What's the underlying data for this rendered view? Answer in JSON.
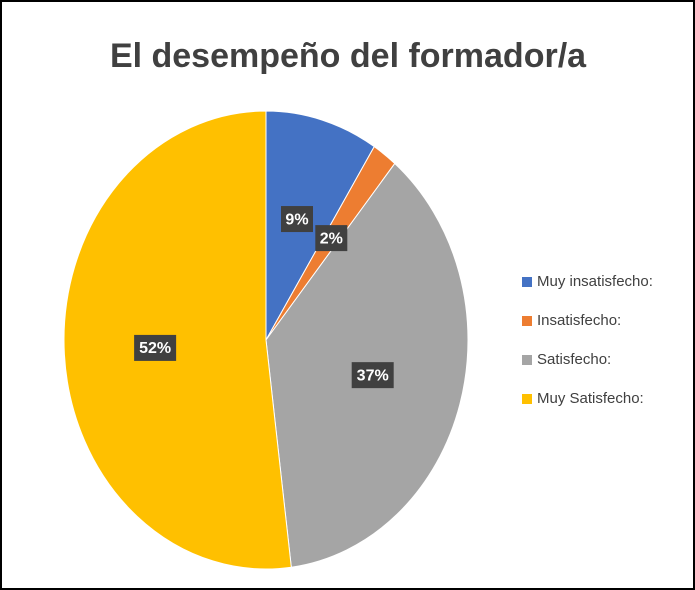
{
  "chart_data": {
    "type": "pie",
    "title": "El desempeño del formador/a",
    "categories": [
      "Muy insatisfecho:",
      "Insatisfecho:",
      "Satisfecho:",
      "Muy Satisfecho:"
    ],
    "values": [
      9,
      2,
      37,
      52
    ],
    "value_labels": [
      "9%",
      "2%",
      "37%",
      "52%"
    ],
    "colors": [
      "#4472c4",
      "#ed7d31",
      "#a5a5a5",
      "#ffc000"
    ],
    "legend": "right"
  }
}
